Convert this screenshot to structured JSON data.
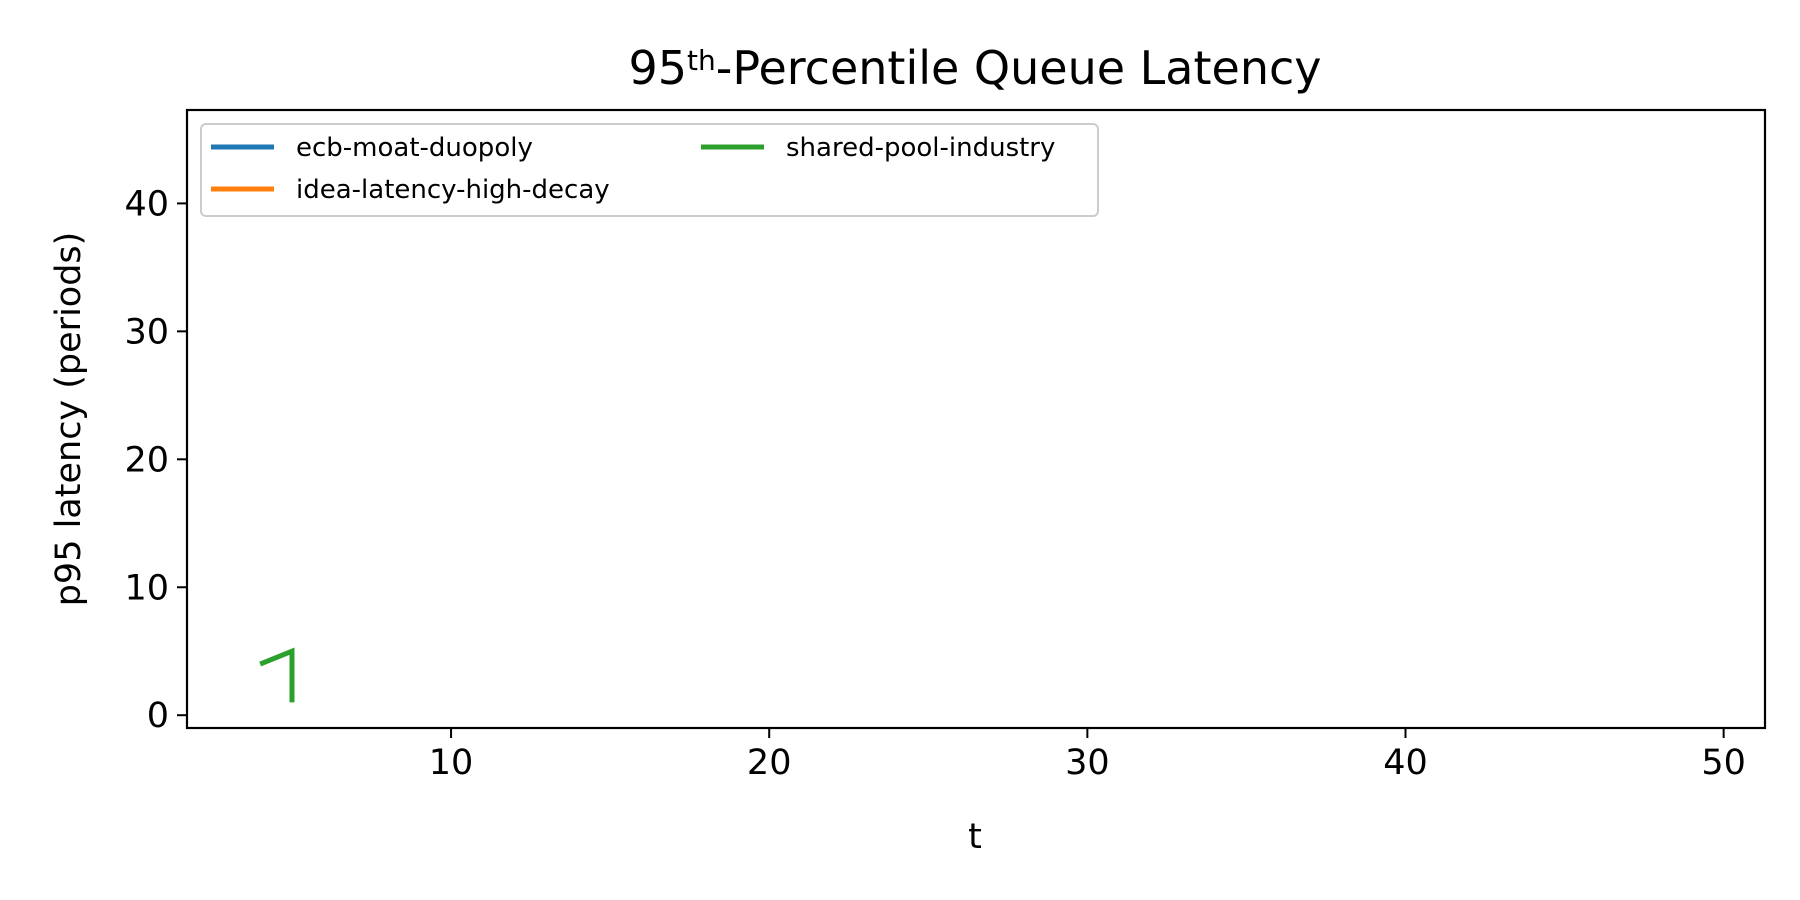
{
  "chart_data": {
    "type": "line",
    "title_main": "95",
    "title_sup": "th",
    "title_rest": "-Percentile Queue Latency",
    "xlabel": "t",
    "ylabel": "p95 latency (periods)",
    "xlim": [
      1.7,
      51.3
    ],
    "ylim": [
      -1.0,
      47.3
    ],
    "xticks": [
      10,
      20,
      30,
      40,
      50
    ],
    "yticks": [
      0,
      10,
      20,
      30,
      40
    ],
    "grid": false,
    "legend_position": "top-left",
    "legend_columns": 2,
    "series": [
      {
        "name": "ecb-moat-duopoly",
        "color": "#1f77b4",
        "x": [],
        "y": []
      },
      {
        "name": "idea-latency-high-decay",
        "color": "#ff7f0e",
        "x": [],
        "y": []
      },
      {
        "name": "shared-pool-industry",
        "color": "#2ca02c",
        "x": [
          4,
          5,
          5
        ],
        "y": [
          4,
          5,
          1
        ]
      }
    ]
  }
}
